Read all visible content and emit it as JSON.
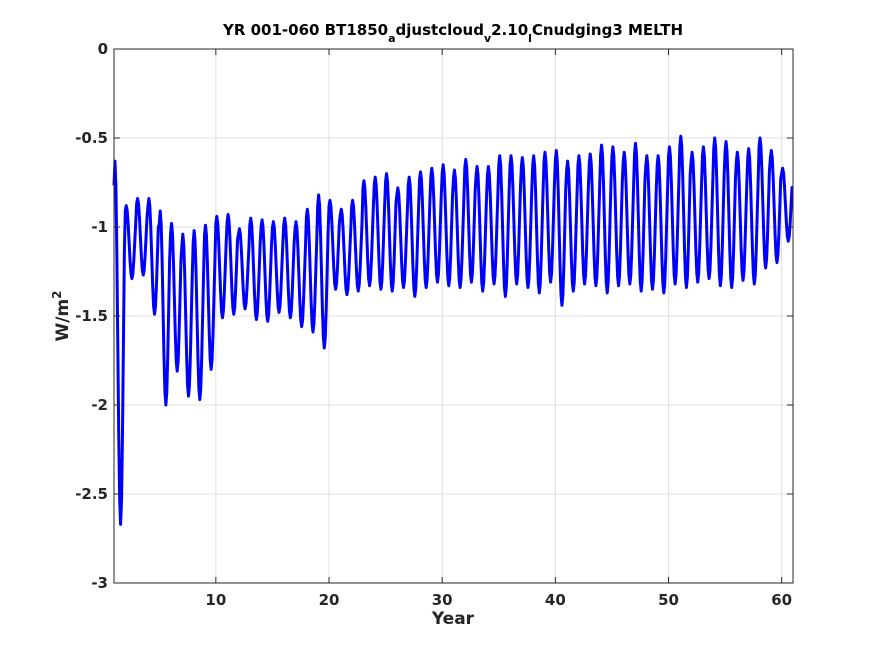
{
  "chart_data": {
    "type": "line",
    "title_parts": [
      {
        "text": "YR 001-060 BT1850",
        "sub": false
      },
      {
        "text": "a",
        "sub": true
      },
      {
        "text": "djustcloud",
        "sub": false
      },
      {
        "text": "v",
        "sub": true
      },
      {
        "text": "2.10",
        "sub": false
      },
      {
        "text": "l",
        "sub": true
      },
      {
        "text": "Cnudging3 MELTH",
        "sub": false
      }
    ],
    "xlabel": "Year",
    "ylabel_base": "W/m",
    "ylabel_sup": "2",
    "xlim": [
      1,
      61
    ],
    "ylim": [
      -3,
      0
    ],
    "xticks": [
      10,
      20,
      30,
      40,
      50,
      60
    ],
    "yticks": [
      0,
      -0.5,
      -1,
      -1.5,
      -2,
      -2.5,
      -3
    ],
    "grid": true,
    "series": [
      {
        "color": "#0000ff",
        "line_width": 3,
        "points_per_year": 12,
        "annual_upper": [
          -0.63,
          -0.88,
          -0.84,
          -0.84,
          -0.91,
          -0.98,
          -1.04,
          -1.02,
          -0.99,
          -0.94,
          -0.93,
          -1.01,
          -0.95,
          -0.96,
          -0.97,
          -0.95,
          -0.97,
          -0.9,
          -0.82,
          -0.85,
          -0.9,
          -0.85,
          -0.74,
          -0.72,
          -0.7,
          -0.78,
          -0.72,
          -0.69,
          -0.67,
          -0.65,
          -0.68,
          -0.62,
          -0.66,
          -0.66,
          -0.6,
          -0.6,
          -0.61,
          -0.6,
          -0.58,
          -0.57,
          -0.63,
          -0.6,
          -0.59,
          -0.54,
          -0.55,
          -0.58,
          -0.53,
          -0.6,
          -0.6,
          -0.55,
          -0.49,
          -0.58,
          -0.55,
          -0.5,
          -0.52,
          -0.58,
          -0.56,
          -0.5,
          -0.57,
          -0.67
        ],
        "annual_lower": [
          -2.67,
          -1.29,
          -1.27,
          -1.49,
          -2.0,
          -1.81,
          -1.95,
          -1.97,
          -1.8,
          -1.51,
          -1.49,
          -1.46,
          -1.52,
          -1.53,
          -1.48,
          -1.51,
          -1.56,
          -1.59,
          -1.68,
          -1.35,
          -1.38,
          -1.36,
          -1.33,
          -1.35,
          -1.36,
          -1.34,
          -1.39,
          -1.34,
          -1.31,
          -1.33,
          -1.34,
          -1.31,
          -1.36,
          -1.32,
          -1.39,
          -1.32,
          -1.34,
          -1.37,
          -1.31,
          -1.44,
          -1.36,
          -1.32,
          -1.33,
          -1.37,
          -1.33,
          -1.32,
          -1.36,
          -1.35,
          -1.37,
          -1.32,
          -1.34,
          -1.31,
          -1.29,
          -1.33,
          -1.34,
          -1.3,
          -1.32,
          -1.23,
          -1.2,
          -1.08
        ]
      }
    ]
  }
}
